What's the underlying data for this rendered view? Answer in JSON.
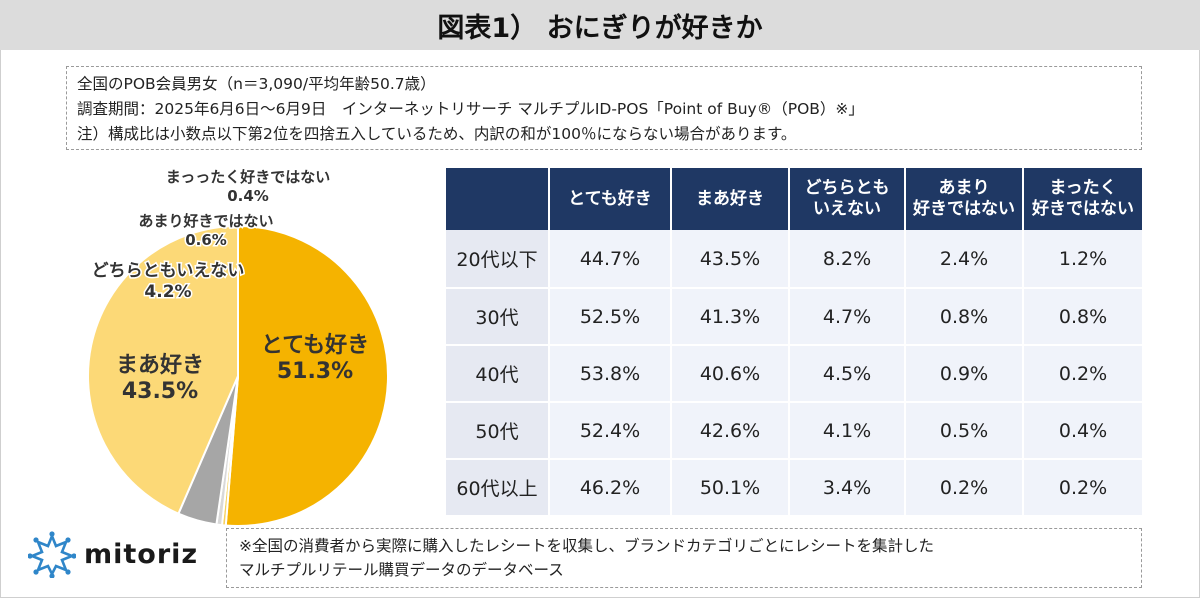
{
  "title": "図表1） おにぎりが好きか",
  "notes": [
    "全国のPOB会員男女（n＝3,090/平均年齢50.7歳）",
    "調査期間：2025年6月6日～6月9日　インターネットリサーチ マルチプルID-POS「Point of Buy®（POB）※」",
    "注）構成比は小数点以下第2位を四捨五入しているため、内訳の和が100％にならない場合があります。"
  ],
  "chart_data": [
    {
      "type": "pie",
      "slices": [
        {
          "label": "とても好き",
          "value": 51.3,
          "value_label": "51.3%",
          "color": "#f5b300"
        },
        {
          "label": "まっったく好きではない",
          "value": 0.4,
          "value_label": "0.4%",
          "color": "#f7d25e"
        },
        {
          "label": "あまり好きではない",
          "value": 0.6,
          "value_label": "0.6%",
          "color": "#d9d9d9"
        },
        {
          "label": "どちらともいえない",
          "value": 4.2,
          "value_label": "4.2%",
          "color": "#a6a6a6"
        },
        {
          "label": "まあ好き",
          "value": 43.5,
          "value_label": "43.5%",
          "color": "#fcd977"
        }
      ]
    },
    {
      "type": "table",
      "columns": [
        "",
        "とても好き",
        "まあ好き",
        "どちらとも\nいえない",
        "あまり\n好きではない",
        "まったく\n好きではない"
      ],
      "rows": [
        {
          "label": "20代以下",
          "values": [
            "44.7%",
            "43.5%",
            "8.2%",
            "2.4%",
            "1.2%"
          ]
        },
        {
          "label": "30代",
          "values": [
            "52.5%",
            "41.3%",
            "4.7%",
            "0.8%",
            "0.8%"
          ]
        },
        {
          "label": "40代",
          "values": [
            "53.8%",
            "40.6%",
            "4.5%",
            "0.9%",
            "0.2%"
          ]
        },
        {
          "label": "50代",
          "values": [
            "52.4%",
            "42.6%",
            "4.1%",
            "0.5%",
            "0.4%"
          ]
        },
        {
          "label": "60代以上",
          "values": [
            "46.2%",
            "50.1%",
            "3.4%",
            "0.2%",
            "0.2%"
          ]
        }
      ]
    }
  ],
  "logo": {
    "text": "mitoriz",
    "icon": "starburst-logo-icon",
    "color": "#2f86c9"
  },
  "footnote": [
    "※全国の消費者から実際に購入したレシートを収集し、ブランドカテゴリごとにレシートを集計した",
    "マルチプルリテール購買データのデータベース"
  ]
}
